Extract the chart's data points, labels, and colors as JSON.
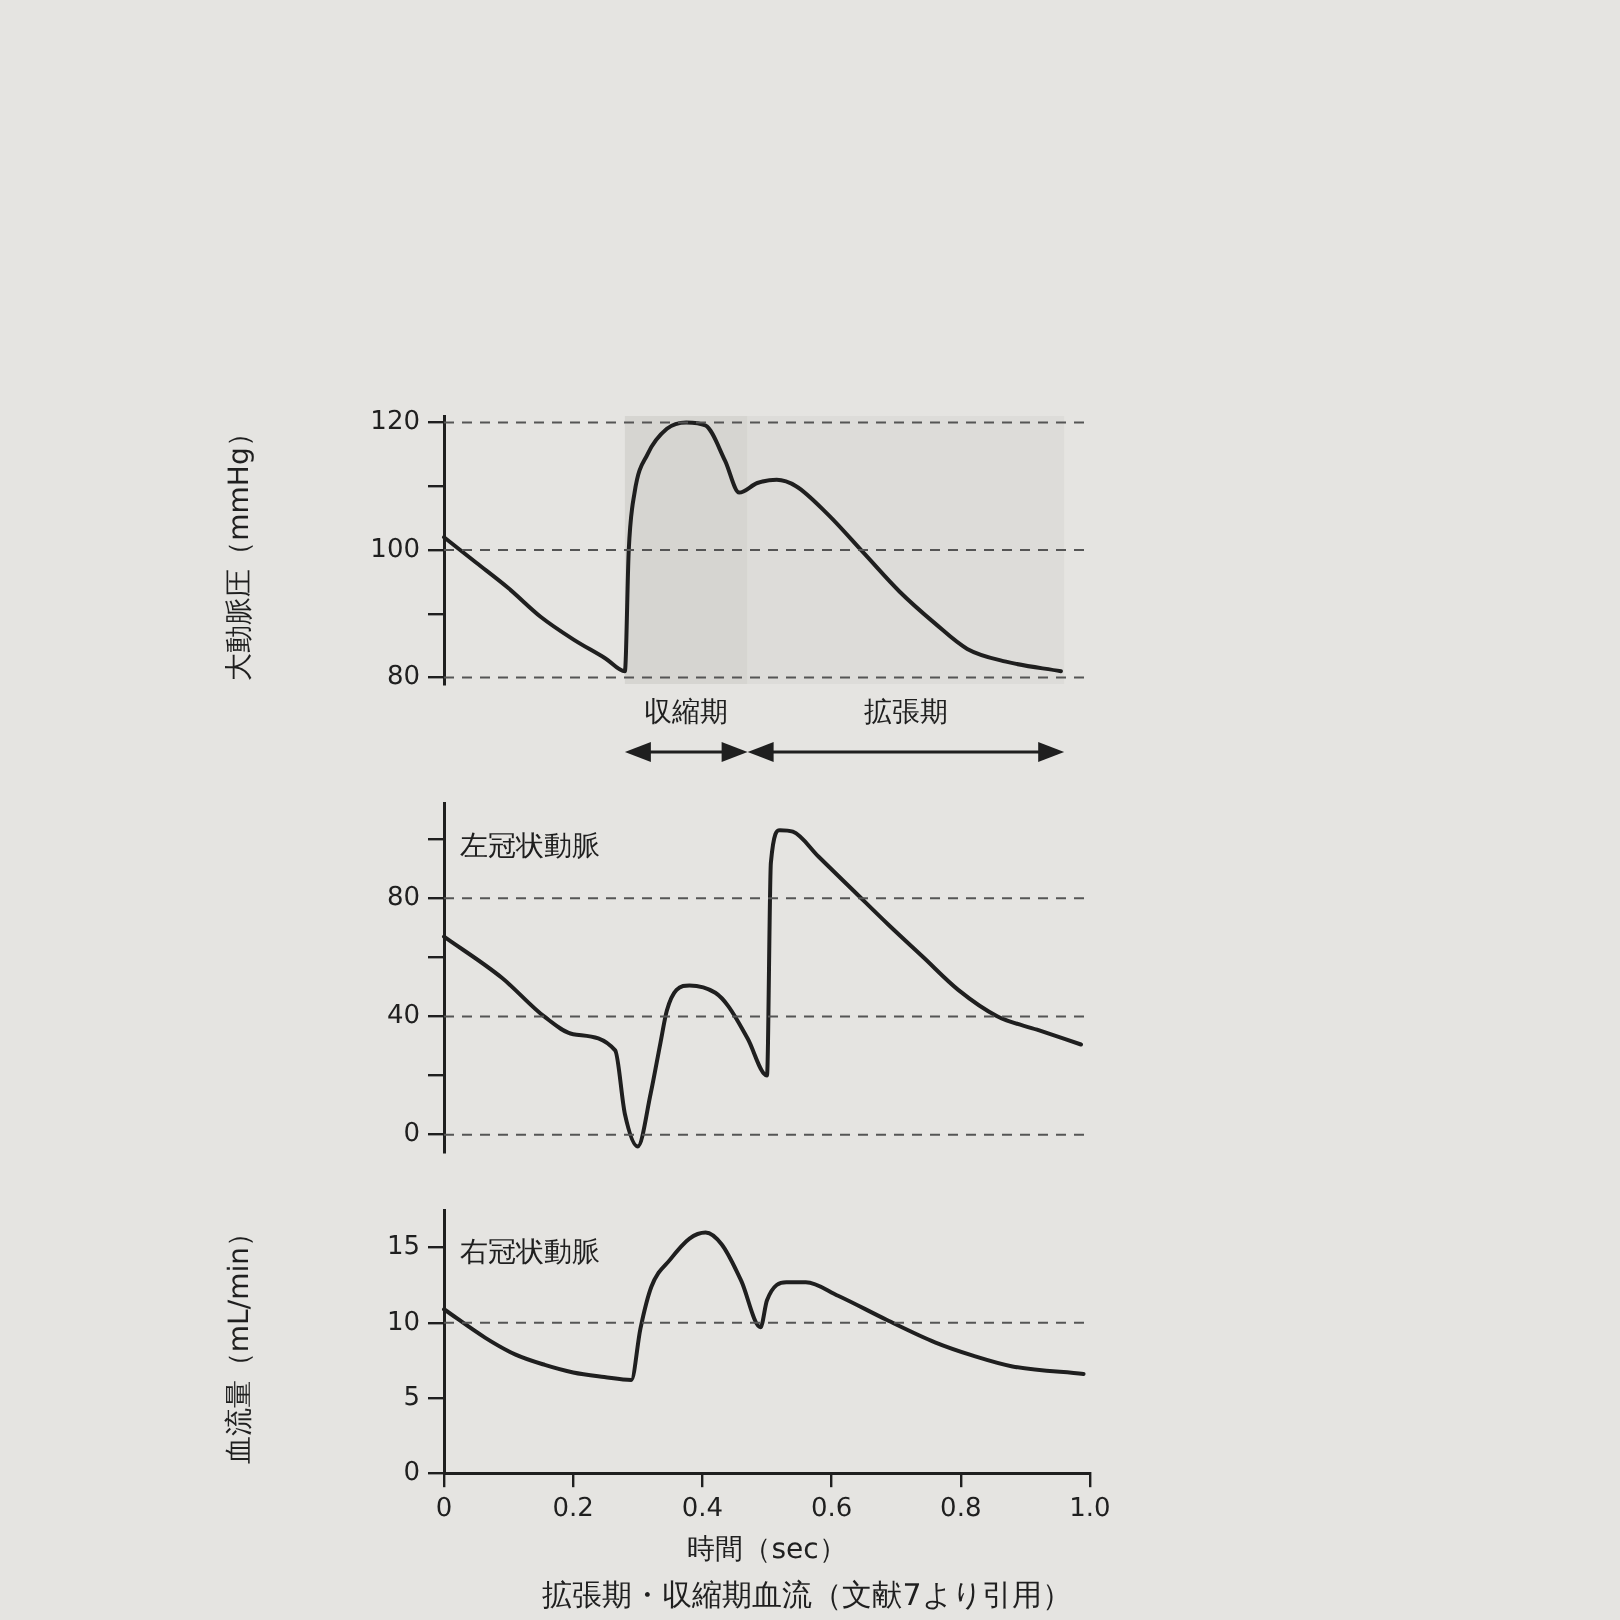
{
  "chart_data": [
    {
      "type": "line",
      "ylabel": "大動脈圧（mmHg）",
      "x": [
        0,
        0.05,
        0.1,
        0.15,
        0.2,
        0.25,
        0.28,
        0.286,
        0.295,
        0.315,
        0.345,
        0.375,
        0.405,
        0.435,
        0.457,
        0.485,
        0.515,
        0.545,
        0.595,
        0.65,
        0.705,
        0.76,
        0.81,
        0.87,
        0.955
      ],
      "series": [
        {
          "color": "#1f1f1f",
          "values": [
            102,
            98,
            94,
            89.5,
            86,
            83,
            81,
            100,
            109,
            115,
            119,
            120,
            119.5,
            114,
            109,
            110.5,
            111,
            110,
            105.5,
            99.5,
            93.5,
            88.5,
            84.5,
            82.5,
            81
          ]
        }
      ],
      "xlim": [
        0,
        1
      ],
      "ylim": [
        79,
        121
      ],
      "yticks": [
        80,
        {
          "value": 90,
          "label": null
        },
        100,
        {
          "value": 110,
          "label": null
        },
        120
      ],
      "tick_labels": "y",
      "marker": "none",
      "line_style": "solid",
      "ref_lines": [
        {
          "axis": "y",
          "value": 80,
          "line_style": "dashed",
          "color": "#555555"
        },
        {
          "axis": "y",
          "value": 100,
          "line_style": "dashed",
          "color": "#555555"
        },
        {
          "axis": "y",
          "value": 120,
          "line_style": "dashed",
          "color": "#555555"
        }
      ],
      "bands": [
        {
          "axis": "x",
          "from": 0.28,
          "to": 0.47,
          "label": "収縮期",
          "color": "#d6d5d1"
        },
        {
          "axis": "x",
          "from": 0.47,
          "to": 0.96,
          "label": "拡張期",
          "color": "#dddcd9"
        }
      ]
    },
    {
      "type": "line",
      "x": [
        0,
        0.09,
        0.155,
        0.2,
        0.265,
        0.28,
        0.3,
        0.32,
        0.335,
        0.345,
        0.36,
        0.38,
        0.42,
        0.44,
        0.47,
        0.5,
        0.506,
        0.52,
        0.54,
        0.58,
        0.634,
        0.688,
        0.742,
        0.796,
        0.857,
        0.918,
        0.986
      ],
      "series": [
        {
          "name": "左冠状動脈",
          "color": "#1f1f1f",
          "values": [
            67,
            53,
            40,
            34,
            28.5,
            7,
            -4,
            14,
            31,
            42,
            49,
            50.5,
            48,
            43.5,
            32.5,
            20,
            92,
            103,
            102.5,
            94,
            82.5,
            71,
            60,
            49,
            40,
            35.5,
            30.5
          ]
        }
      ],
      "xlim": [
        0,
        1
      ],
      "ylim": [
        -6,
        112
      ],
      "yticks": [
        0,
        {
          "value": 20,
          "label": null
        },
        40,
        {
          "value": 60,
          "label": null
        },
        80,
        {
          "value": 100,
          "label": null
        }
      ],
      "tick_labels": "y",
      "marker": "none",
      "line_style": "solid",
      "ref_lines": [
        {
          "axis": "y",
          "value": 0,
          "line_style": "dashed",
          "color": "#555555"
        },
        {
          "axis": "y",
          "value": 40,
          "line_style": "dashed",
          "color": "#555555"
        },
        {
          "axis": "y",
          "value": 80,
          "line_style": "dashed",
          "color": "#555555"
        }
      ]
    },
    {
      "type": "line",
      "xlabel": "時間（sec）",
      "ylabel": "血流量（mL/min）",
      "x": [
        0,
        0.064,
        0.11,
        0.156,
        0.2,
        0.248,
        0.29,
        0.304,
        0.321,
        0.35,
        0.38,
        0.405,
        0.43,
        0.46,
        0.49,
        0.5,
        0.53,
        0.56,
        0.61,
        0.685,
        0.76,
        0.82,
        0.88,
        0.99
      ],
      "series": [
        {
          "name": "右冠状動脈",
          "color": "#1f1f1f",
          "values": [
            10.9,
            9,
            7.9,
            7.2,
            6.7,
            6.4,
            6.2,
            9.6,
            12.4,
            14.2,
            15.6,
            16,
            15.2,
            12.8,
            9.7,
            11.5,
            12.7,
            12.7,
            11.8,
            10.2,
            8.7,
            7.8,
            7.1,
            6.6
          ]
        }
      ],
      "xlim": [
        0,
        1
      ],
      "ylim": [
        0,
        17.5
      ],
      "xticks": [
        0,
        0.2,
        0.4,
        0.6,
        0.8,
        {
          "value": 1,
          "label": "1.0"
        }
      ],
      "yticks": [
        0,
        5,
        10,
        15
      ],
      "marker": "none",
      "line_style": "solid",
      "ref_lines": [
        {
          "axis": "y",
          "value": 10,
          "line_style": "dashed",
          "color": "#555555"
        }
      ],
      "annotations": [
        "拡張期・収縮期血流（文献7より引用）"
      ]
    }
  ]
}
